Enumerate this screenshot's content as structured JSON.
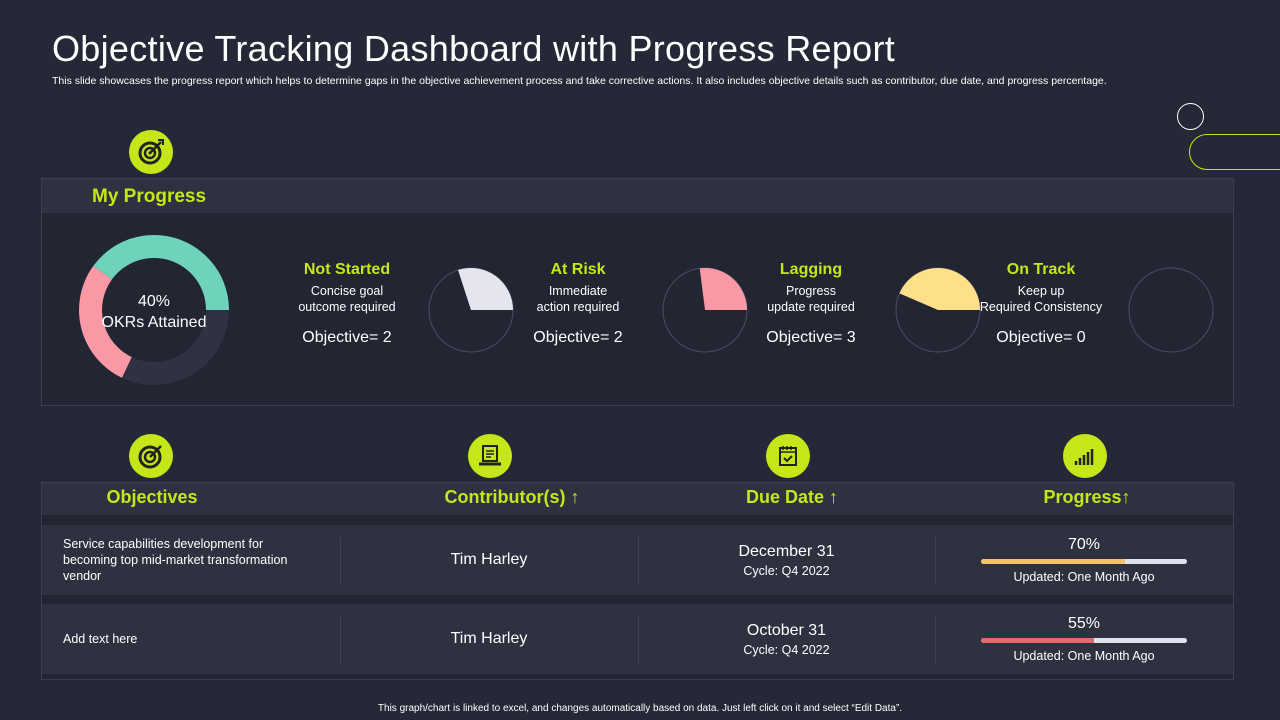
{
  "header": {
    "title": "Objective Tracking Dashboard with Progress Report",
    "subtitle": "This slide showcases the progress report which helps to determine gaps in the objective achievement process and take corrective actions. It also includes objective details such as contributor, due date, and progress percentage."
  },
  "progress": {
    "title": "My Progress",
    "donut": {
      "percent_label": "40%",
      "label": "OKRs Attained",
      "attained": 0.4,
      "remaining_pink": 0.28,
      "colors": {
        "attained": "#6fd3bb",
        "pink": "#f999a6",
        "rest": "#2f3242"
      }
    },
    "statuses": [
      {
        "name": "Not Started",
        "desc1": "Concise goal",
        "desc2": "outcome required",
        "objective": "Objective= 2",
        "fraction": 0.3,
        "color": "#e4e5ed"
      },
      {
        "name": "At Risk",
        "desc1": "Immediate",
        "desc2": "action required",
        "objective": "Objective= 2",
        "fraction": 0.27,
        "color": "#f999a6"
      },
      {
        "name": "Lagging",
        "desc1": "Progress",
        "desc2": "update required",
        "objective": "Objective= 3",
        "fraction": 0.29,
        "color": "#ffe08a"
      },
      {
        "name": "On Track",
        "desc1": "Keep up",
        "desc2": "Required Consistency",
        "objective": "Objective= 0",
        "fraction": 0,
        "color": "#ffe08a"
      }
    ]
  },
  "table": {
    "headers": {
      "objectives": "Objectives",
      "contributors": "Contributor(s)",
      "due": "Due Date",
      "progress": "Progress",
      "sort_icon": "↑"
    },
    "rows": [
      {
        "objective": "Service capabilities development  for becoming top mid-market transformation vendor",
        "contributor": "Tim Harley",
        "date": "December 31",
        "cycle": "Cycle: Q4 2022",
        "progress_label": "70%",
        "progress": 70,
        "bar_color": "#f4c26a",
        "updated": "Updated: One Month Ago"
      },
      {
        "objective": "Add text here",
        "contributor": "Tim Harley",
        "date": "October 31",
        "cycle": "Cycle: Q4 2022",
        "progress_label": "55%",
        "progress": 55,
        "bar_color": "#e8676b",
        "updated": "Updated: One Month Ago"
      }
    ]
  },
  "footer": "This graph/chart is linked to excel, and changes automatically based on data. Just left click on it and select “Edit Data”."
}
